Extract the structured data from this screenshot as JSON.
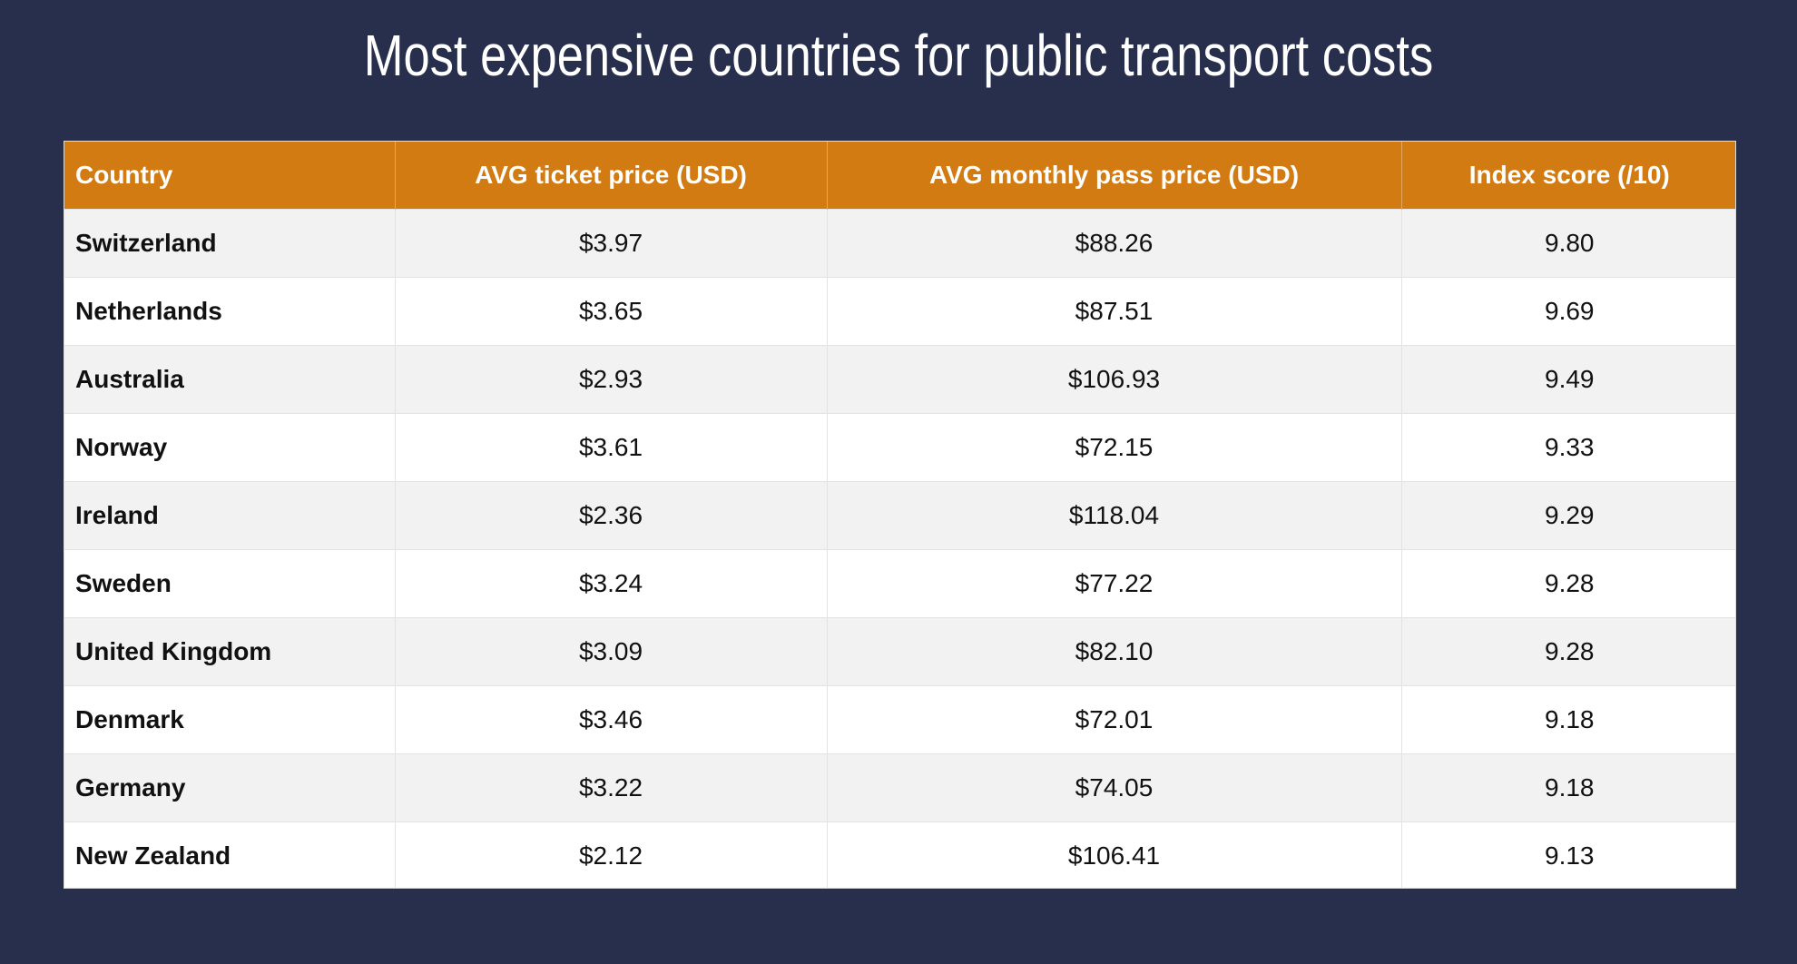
{
  "title": "Most expensive countries for public transport costs",
  "colors": {
    "background": "#282f4d",
    "header": "#d27b12",
    "row_alt": "#f2f2f2",
    "row": "#ffffff"
  },
  "chart_data": {
    "type": "table",
    "title": "Most expensive countries for public transport costs",
    "columns": [
      "Country",
      "AVG ticket price (USD)",
      "AVG monthly pass price (USD)",
      "Index score (/10)"
    ],
    "rows": [
      [
        "Switzerland",
        "$3.97",
        "$88.26",
        "9.80"
      ],
      [
        "Netherlands",
        "$3.65",
        "$87.51",
        "9.69"
      ],
      [
        "Australia",
        "$2.93",
        "$106.93",
        "9.49"
      ],
      [
        "Norway",
        "$3.61",
        "$72.15",
        "9.33"
      ],
      [
        "Ireland",
        "$2.36",
        "$118.04",
        "9.29"
      ],
      [
        "Sweden",
        "$3.24",
        "$77.22",
        "9.28"
      ],
      [
        "United Kingdom",
        "$3.09",
        "$82.10",
        "9.28"
      ],
      [
        "Denmark",
        "$3.46",
        "$72.01",
        "9.18"
      ],
      [
        "Germany",
        "$3.22",
        "$74.05",
        "9.18"
      ],
      [
        "New Zealand",
        "$2.12",
        "$106.41",
        "9.13"
      ]
    ]
  }
}
